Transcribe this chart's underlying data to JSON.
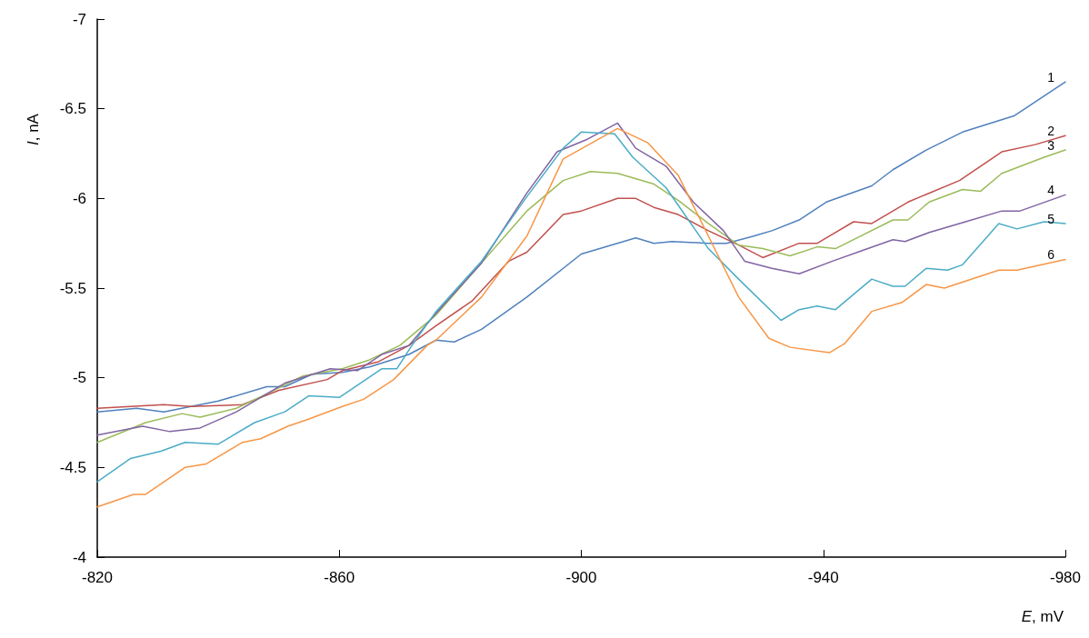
{
  "chart_data": {
    "type": "line",
    "xlabel": "E, mV",
    "ylabel": "I, nA",
    "xlim": [
      -820,
      -980
    ],
    "xticks": [
      -820,
      -860,
      -900,
      -940,
      -980
    ],
    "ylim": [
      -4,
      -7
    ],
    "yticks": [
      -7,
      -6.5,
      -6,
      -5.5,
      -5,
      -4.5,
      -4
    ],
    "grid": false,
    "legend": false,
    "series": [
      {
        "name": "1",
        "color": "#4f81bd",
        "x": [
          -820,
          -826.5,
          -831,
          -840,
          -848,
          -851,
          -855.5,
          -860.5,
          -865,
          -871.5,
          -876,
          -879,
          -883.5,
          -891,
          -900,
          -909,
          -912,
          -915,
          -921,
          -924,
          -928.5,
          -931.5,
          -936,
          -940.5,
          -948,
          -951.5,
          -957,
          -963,
          -971.5,
          -980
        ],
        "values": [
          -4.81,
          -4.83,
          -4.81,
          -4.87,
          -4.95,
          -4.95,
          -5.02,
          -5.03,
          -5.06,
          -5.13,
          -5.21,
          -5.2,
          -5.27,
          -5.45,
          -5.69,
          -5.78,
          -5.75,
          -5.76,
          -5.75,
          -5.75,
          -5.79,
          -5.82,
          -5.88,
          -5.98,
          -6.07,
          -6.16,
          -6.27,
          -6.37,
          -6.46,
          -6.65
        ]
      },
      {
        "name": "2",
        "color": "#c0504d",
        "x": [
          -820,
          -831,
          -835.5,
          -844,
          -850,
          -858,
          -860.5,
          -866.5,
          -871.5,
          -876,
          -882,
          -888,
          -891,
          -897,
          -900,
          -906,
          -909,
          -912,
          -916,
          -921,
          -926,
          -930,
          -936,
          -939,
          -945,
          -948,
          -954,
          -962.5,
          -969.5,
          -975,
          -980
        ],
        "values": [
          -4.83,
          -4.85,
          -4.84,
          -4.85,
          -4.93,
          -4.99,
          -5.04,
          -5.09,
          -5.18,
          -5.29,
          -5.43,
          -5.65,
          -5.7,
          -5.91,
          -5.93,
          -6.0,
          -6.0,
          -5.95,
          -5.91,
          -5.82,
          -5.74,
          -5.67,
          -5.75,
          -5.75,
          -5.87,
          -5.86,
          -5.98,
          -6.1,
          -6.26,
          -6.3,
          -6.35
        ]
      },
      {
        "name": "3",
        "color": "#9bbb59",
        "x": [
          -820,
          -828,
          -834,
          -837,
          -843,
          -848,
          -854,
          -860.5,
          -865,
          -870,
          -876,
          -883.5,
          -891,
          -897,
          -901.5,
          -906,
          -912,
          -916,
          -921,
          -926,
          -930,
          -934.5,
          -939,
          -942,
          -951.5,
          -954,
          -957.5,
          -963,
          -966,
          -969.5,
          -976.5,
          -980
        ],
        "values": [
          -4.64,
          -4.75,
          -4.8,
          -4.78,
          -4.83,
          -4.91,
          -5.01,
          -5.05,
          -5.1,
          -5.18,
          -5.35,
          -5.64,
          -5.93,
          -6.1,
          -6.15,
          -6.14,
          -6.08,
          -5.99,
          -5.86,
          -5.74,
          -5.72,
          -5.68,
          -5.73,
          -5.72,
          -5.88,
          -5.88,
          -5.98,
          -6.05,
          -6.04,
          -6.14,
          -6.23,
          -6.27
        ]
      },
      {
        "name": "4",
        "color": "#8064a2",
        "x": [
          -820,
          -827.5,
          -832,
          -837,
          -843,
          -847,
          -851,
          -858.5,
          -863,
          -867,
          -871.5,
          -876,
          -883.5,
          -891,
          -896,
          -901,
          -906,
          -909,
          -914,
          -918.5,
          -923.5,
          -927,
          -931.5,
          -936,
          -941.5,
          -946.5,
          -951.5,
          -953.5,
          -957.5,
          -963.5,
          -969.5,
          -972.5,
          -980
        ],
        "values": [
          -4.68,
          -4.73,
          -4.7,
          -4.72,
          -4.81,
          -4.89,
          -4.97,
          -5.05,
          -5.04,
          -5.13,
          -5.18,
          -5.36,
          -5.64,
          -6.03,
          -6.26,
          -6.33,
          -6.42,
          -6.28,
          -6.18,
          -5.98,
          -5.82,
          -5.65,
          -5.61,
          -5.58,
          -5.65,
          -5.71,
          -5.77,
          -5.76,
          -5.81,
          -5.87,
          -5.93,
          -5.93,
          -6.02
        ]
      },
      {
        "name": "5",
        "color": "#4bacc6",
        "x": [
          -820,
          -825.5,
          -830.5,
          -834.5,
          -840,
          -846,
          -851,
          -855,
          -860,
          -867,
          -869.5,
          -872,
          -876,
          -883.5,
          -891,
          -897,
          -900,
          -905.5,
          -908.5,
          -914,
          -921,
          -926,
          -933,
          -936,
          -939,
          -942,
          -948,
          -951.5,
          -953.5,
          -957,
          -960.5,
          -963,
          -969,
          -972,
          -976.5,
          -980
        ],
        "values": [
          -4.42,
          -4.55,
          -4.59,
          -4.64,
          -4.63,
          -4.75,
          -4.81,
          -4.9,
          -4.89,
          -5.05,
          -5.05,
          -5.18,
          -5.37,
          -5.65,
          -6.01,
          -6.28,
          -6.37,
          -6.36,
          -6.23,
          -6.06,
          -5.72,
          -5.55,
          -5.32,
          -5.38,
          -5.4,
          -5.38,
          -5.55,
          -5.51,
          -5.51,
          -5.61,
          -5.6,
          -5.63,
          -5.86,
          -5.83,
          -5.87,
          -5.86
        ]
      },
      {
        "name": "6",
        "color": "#f79646",
        "x": [
          -820,
          -826,
          -828,
          -834.5,
          -838,
          -844,
          -847,
          -851.5,
          -855,
          -860.5,
          -864,
          -869,
          -874.5,
          -876,
          -883.5,
          -891,
          -897,
          -906,
          -911,
          -916,
          -921,
          -926,
          -931,
          -934.5,
          -941,
          -943.5,
          -948,
          -953,
          -957,
          -960,
          -969,
          -972,
          -980
        ],
        "values": [
          -4.28,
          -4.35,
          -4.35,
          -4.5,
          -4.52,
          -4.64,
          -4.66,
          -4.73,
          -4.77,
          -4.84,
          -4.88,
          -4.99,
          -5.18,
          -5.21,
          -5.45,
          -5.79,
          -6.22,
          -6.39,
          -6.31,
          -6.13,
          -5.79,
          -5.45,
          -5.22,
          -5.17,
          -5.14,
          -5.19,
          -5.37,
          -5.42,
          -5.52,
          -5.5,
          -5.6,
          -5.6,
          -5.66
        ]
      }
    ]
  }
}
